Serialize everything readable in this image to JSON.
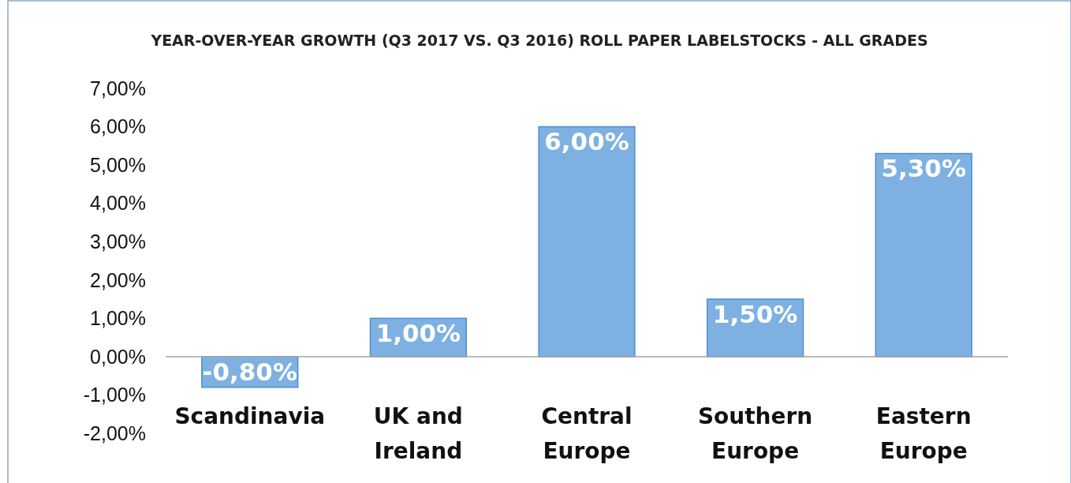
{
  "chart_data": {
    "type": "bar",
    "title": "YEAR-OVER-YEAR GROWTH (Q3 2017 VS. Q3 2016) ROLL PAPER LABELSTOCKS - ALL GRADES",
    "categories": [
      "Scandinavia",
      "UK and Ireland",
      "Central Europe",
      "Southern Europe",
      "Eastern Europe"
    ],
    "values": [
      -0.8,
      1.0,
      6.0,
      1.5,
      5.3
    ],
    "value_labels": [
      "-0,80%",
      "1,00%",
      "6,00%",
      "1,50%",
      "5,30%"
    ],
    "color": "#7eb1e2",
    "ylim": [
      -2,
      7
    ],
    "yticks": [
      {
        "value": -2,
        "label": "-2,00%"
      },
      {
        "value": -1,
        "label": "-1,00%"
      },
      {
        "value": 0,
        "label": "0,00%"
      },
      {
        "value": 1,
        "label": "1,00%"
      },
      {
        "value": 2,
        "label": "2,00%"
      },
      {
        "value": 3,
        "label": "3,00%"
      },
      {
        "value": 4,
        "label": "4,00%"
      },
      {
        "value": 5,
        "label": "5,00%"
      },
      {
        "value": 6,
        "label": "6,00%"
      },
      {
        "value": 7,
        "label": "7,00%"
      }
    ],
    "grid": false
  }
}
